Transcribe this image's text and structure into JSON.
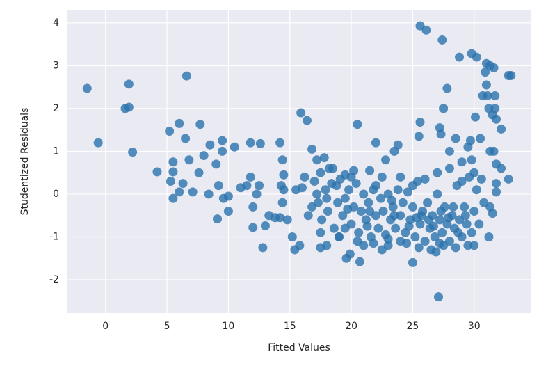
{
  "chart_data": {
    "type": "scatter",
    "xlabel": "Fitted Values",
    "ylabel": "Studentized Residuals",
    "xlim": [
      -3.1,
      34.6
    ],
    "ylim": [
      -2.78,
      4.29
    ],
    "xticks": [
      0,
      5,
      10,
      15,
      20,
      25,
      30
    ],
    "yticks": [
      -2,
      -1,
      0,
      1,
      2,
      3,
      4
    ],
    "grid": true,
    "color": "#2a73ad",
    "x": [
      -1.5,
      -0.6,
      1.6,
      1.9,
      1.9,
      2.2,
      4.2,
      5.2,
      5.3,
      5.5,
      5.5,
      5.5,
      6.0,
      6.0,
      6.3,
      6.6,
      6.5,
      6.8,
      7.1,
      7.7,
      7.6,
      8.0,
      8.5,
      8.4,
      9.0,
      9.2,
      9.1,
      9.5,
      9.5,
      9.6,
      10.0,
      10.0,
      10.5,
      11.0,
      11.5,
      11.8,
      11.8,
      12.0,
      12.0,
      12.3,
      12.5,
      12.6,
      12.8,
      13.0,
      13.3,
      13.8,
      14.2,
      14.3,
      14.4,
      14.5,
      14.5,
      14.4,
      14.2,
      14.8,
      15.2,
      15.4,
      15.8,
      15.9,
      16.4,
      15.5,
      16.0,
      16.5,
      16.8,
      17.2,
      17.5,
      17.5,
      17.8,
      18.2,
      18.0,
      19.0,
      19.5,
      19.6,
      19.9,
      20.5,
      20.7,
      20.2,
      21.5,
      22.0,
      21.8,
      22.5,
      22.8,
      23.0,
      23.5,
      23.8,
      24.0,
      25.0,
      25.6,
      26.1,
      27.4,
      25.6,
      25.5,
      27.2,
      27.3,
      27.5,
      27.8,
      28.0,
      28.5,
      29.0,
      27.1,
      26.9,
      27.2,
      28.8,
      29.8,
      30.2,
      31.0,
      31.3,
      31.6,
      32.8,
      33.0,
      30.9,
      31.0,
      30.7,
      31.1,
      31.7,
      31.2,
      31.5,
      31.7,
      31.8,
      32.2,
      30.1,
      30.5,
      29.7,
      29.5,
      29.8,
      31.3,
      31.6,
      31.8,
      32.2,
      32.8,
      31.8,
      31.8,
      31.3,
      31.5,
      31.2,
      30.0,
      17.0,
      17.3,
      17.6,
      17.9,
      18.1,
      18.4,
      18.6,
      18.9,
      19.1,
      19.3,
      19.5,
      19.8,
      20.0,
      20.2,
      20.4,
      20.6,
      20.8,
      21.0,
      21.2,
      21.4,
      21.6,
      21.8,
      22.0,
      22.2,
      22.4,
      22.6,
      22.8,
      23.0,
      23.2,
      23.4,
      23.6,
      23.8,
      24.0,
      24.2,
      24.4,
      24.6,
      24.8,
      25.0,
      25.2,
      25.4,
      25.6,
      25.8,
      26.0,
      26.2,
      26.4,
      26.6,
      26.8,
      27.0,
      27.2,
      27.4,
      27.6,
      27.8,
      28.0,
      28.2,
      28.4,
      28.6,
      28.8,
      29.0,
      29.2,
      29.4,
      29.6,
      29.8,
      30.0,
      30.2,
      30.4,
      30.6,
      30.8,
      17.5,
      18.5,
      19.0,
      20.0,
      21.0,
      22.0,
      23.0,
      24.0,
      25.0,
      26.0,
      27.0,
      28.0,
      29.0,
      30.0,
      26.5,
      27.5,
      28.5,
      29.5,
      25.5,
      24.5,
      22.5,
      20.5,
      19.5,
      18.0,
      16.8,
      16.2,
      17.2,
      18.8,
      21.5,
      23.5,
      25.7,
      26.3,
      27.3,
      28.3,
      29.3,
      24.7,
      26.7,
      28.7,
      27.9,
      25.3,
      23.3,
      21.3,
      19.7
    ],
    "values": [
      2.47,
      1.2,
      2.0,
      2.03,
      2.57,
      0.98,
      0.52,
      1.47,
      0.3,
      0.75,
      0.52,
      -0.1,
      1.65,
      0.05,
      0.25,
      2.76,
      1.3,
      0.8,
      0.05,
      1.63,
      0.5,
      0.9,
      1.15,
      0.0,
      0.7,
      0.2,
      -0.58,
      1.25,
      1.0,
      -0.1,
      -0.05,
      -0.4,
      1.1,
      0.15,
      0.2,
      0.4,
      1.2,
      -0.3,
      -0.78,
      0.0,
      0.2,
      1.18,
      -1.25,
      -0.74,
      -0.5,
      -0.55,
      1.2,
      0.2,
      0.8,
      0.45,
      0.1,
      -0.2,
      -0.55,
      -0.6,
      -1.0,
      -1.3,
      -1.2,
      1.9,
      1.72,
      0.1,
      0.15,
      -0.5,
      1.05,
      0.8,
      0.5,
      -1.25,
      0.85,
      0.6,
      -1.2,
      -1.0,
      0.45,
      -1.5,
      -1.4,
      1.63,
      -1.58,
      0.55,
      0.55,
      1.2,
      -1.15,
      0.4,
      0.8,
      -1.2,
      1.0,
      1.15,
      -1.1,
      -1.6,
      3.93,
      3.83,
      3.6,
      1.68,
      1.35,
      1.55,
      1.4,
      2.0,
      2.47,
      1.0,
      1.3,
      0.75,
      -2.4,
      -1.35,
      -1.15,
      3.2,
      3.28,
      3.2,
      3.05,
      3.0,
      2.95,
      2.77,
      2.77,
      2.85,
      2.55,
      2.3,
      2.3,
      2.3,
      2.0,
      1.85,
      2.0,
      1.75,
      1.52,
      1.8,
      1.3,
      1.25,
      1.1,
      0.8,
      1.0,
      1.0,
      0.7,
      0.6,
      0.35,
      0.25,
      0.05,
      -0.3,
      -0.45,
      -1.0,
      -1.2,
      0.3,
      -0.2,
      -0.6,
      0.1,
      -0.4,
      0.25,
      -0.8,
      -0.2,
      0.35,
      -0.5,
      -0.1,
      0.1,
      -0.7,
      -0.3,
      0.25,
      -0.9,
      -0.4,
      0.0,
      -0.6,
      -0.2,
      -1.0,
      0.1,
      -0.5,
      -0.8,
      -0.1,
      -0.4,
      -0.95,
      0.0,
      -0.6,
      -0.3,
      -0.8,
      0.1,
      -0.5,
      -0.2,
      -0.9,
      0.05,
      -0.6,
      -0.3,
      -1.0,
      0.3,
      -0.7,
      -0.4,
      -1.1,
      -0.2,
      -0.8,
      -0.5,
      -1.0,
      0.0,
      -0.6,
      -0.9,
      -0.3,
      -0.7,
      -1.1,
      -0.5,
      -0.8,
      0.2,
      -0.6,
      -1.0,
      -0.3,
      -0.7,
      0.4,
      -0.9,
      -0.4,
      0.1,
      -0.7,
      0.35,
      -0.2,
      -0.9,
      0.6,
      -1.0,
      0.4,
      -1.2,
      0.2,
      -1.05,
      0.4,
      0.2,
      0.35,
      0.5,
      0.6,
      0.3,
      0.5,
      -1.3,
      -1.2,
      -1.25,
      -1.2,
      -1.25,
      -1.15,
      -1.3,
      -1.1,
      -0.8,
      -0.1,
      -0.3,
      0.4,
      0.0,
      0.2,
      -0.4,
      -0.5,
      -0.5,
      -0.6,
      -0.4,
      -0.3,
      -0.5,
      -0.75,
      -0.75,
      -0.9,
      -0.55,
      -0.55,
      -0.15,
      -0.75,
      -0.35
    ]
  }
}
